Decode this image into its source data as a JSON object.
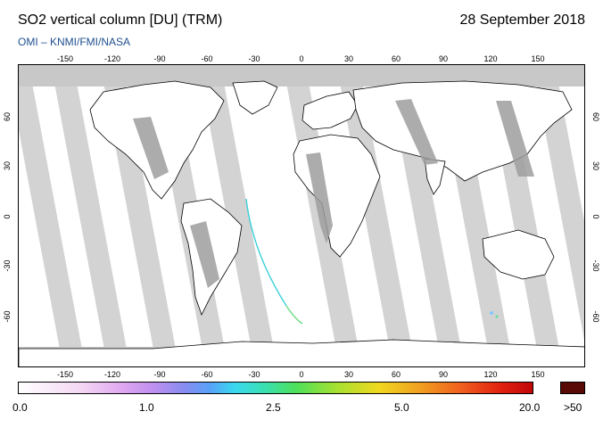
{
  "header": {
    "title": "SO2 vertical column [DU] (TRM)",
    "date": "28 September 2018",
    "source": "OMI  –  KNMI/FMI/NASA"
  },
  "map": {
    "longitude_labels": [
      "-150",
      "-120",
      "-90",
      "-60",
      "-30",
      "0",
      "30",
      "60",
      "90",
      "120",
      "150"
    ],
    "latitude_labels": [
      "60",
      "30",
      "0",
      "-30",
      "-60"
    ],
    "colors": {
      "ocean": "#ffffff",
      "land_outline": "#000000",
      "swath_gap": "#d3d3d3",
      "no_data_dark": "#9e9e9e",
      "polar_mask": "#bdbdbd",
      "so2_trace": "#3ad0d8"
    }
  },
  "colorbar": {
    "labels": [
      "0.0",
      "1.0",
      "2.5",
      "5.0",
      "20.0",
      ">50"
    ],
    "overflow_color": "#5a0a06"
  }
}
